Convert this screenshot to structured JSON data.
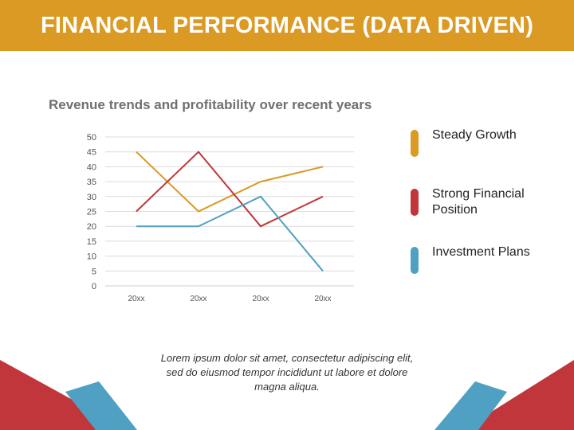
{
  "header": {
    "title": "FINANCIAL PERFORMANCE (DATA DRIVEN)"
  },
  "subtitle": "Revenue trends and profitability over recent years",
  "chart_data": {
    "type": "line",
    "categories": [
      "20XX",
      "20XX",
      "20XX",
      "20XX"
    ],
    "series": [
      {
        "name": "Steady Growth",
        "color": "#DA9A24",
        "values": [
          45,
          25,
          35,
          40
        ]
      },
      {
        "name": "Strong Financial Position",
        "color": "#C1363A",
        "values": [
          25,
          45,
          20,
          30
        ]
      },
      {
        "name": "Investment Plans",
        "color": "#4FA0C2",
        "values": [
          20,
          20,
          30,
          5
        ]
      }
    ],
    "ylim": [
      0,
      50
    ],
    "yticks": [
      0,
      5,
      10,
      15,
      20,
      25,
      30,
      35,
      40,
      45,
      50
    ],
    "grid": true,
    "legend_position": "right",
    "xlabel": "",
    "ylabel": ""
  },
  "legend": {
    "items": [
      {
        "label": "Steady Growth",
        "color": "#DA9A24"
      },
      {
        "label": "Strong Financial Position",
        "color": "#C1363A"
      },
      {
        "label": "Investment Plans",
        "color": "#4FA0C2"
      }
    ]
  },
  "caption": "Lorem ipsum dolor sit amet, consectetur adipiscing elit, sed do eiusmod tempor incididunt ut labore et dolore magna aliqua.",
  "colors": {
    "accent": "#DA9A24",
    "red": "#C1363A",
    "blue": "#4FA0C2"
  }
}
